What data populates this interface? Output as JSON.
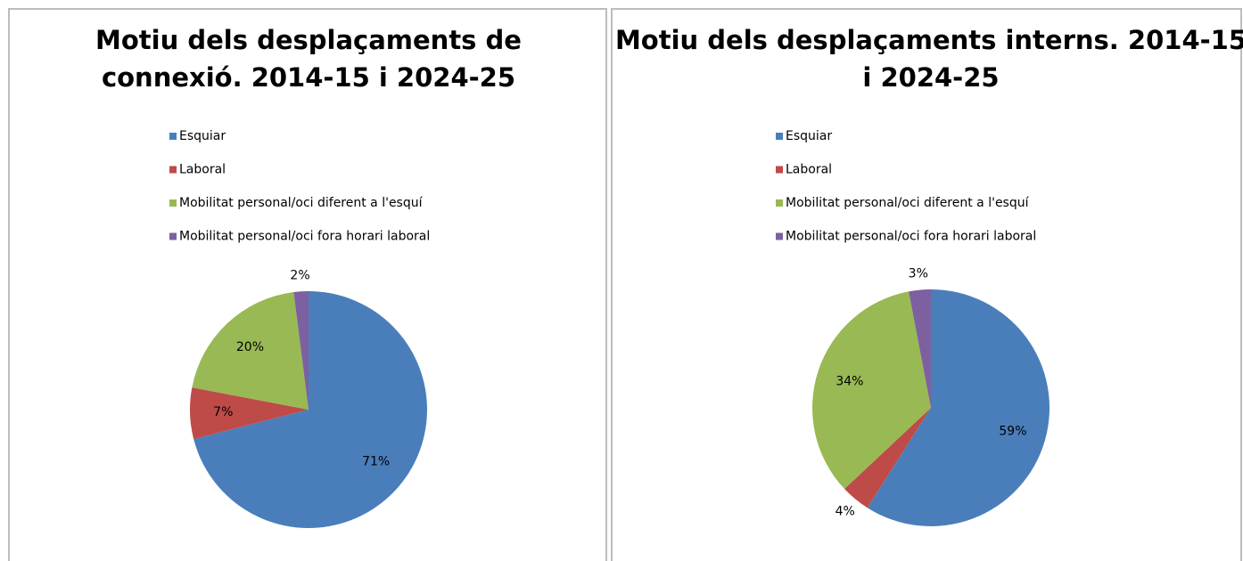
{
  "chart_data": [
    {
      "type": "pie",
      "title": "Motiu dels desplaçaments de connexió. 2014-15 i 2024-25",
      "categories": [
        "Esquiar",
        "Laboral",
        "Mobilitat personal/oci diferent a l'esquí",
        "Mobilitat personal/oci fora horari laboral"
      ],
      "values": [
        71,
        7,
        20,
        2
      ],
      "value_labels": [
        "71%",
        "7%",
        "20%",
        "2%"
      ],
      "colors": [
        "#4a7ebb",
        "#be4b48",
        "#98b954",
        "#7d60a0"
      ],
      "legend": "top"
    },
    {
      "type": "pie",
      "title": "Motiu dels desplaçaments interns. 2014-15 i 2024-25",
      "categories": [
        "Esquiar",
        "Laboral",
        "Mobilitat personal/oci diferent a l'esquí",
        "Mobilitat personal/oci fora horari laboral"
      ],
      "values": [
        59,
        4,
        34,
        3
      ],
      "value_labels": [
        "59%",
        "4%",
        "34%",
        "3%"
      ],
      "colors": [
        "#4a7ebb",
        "#be4b48",
        "#98b954",
        "#7d60a0"
      ],
      "legend": "top"
    }
  ]
}
